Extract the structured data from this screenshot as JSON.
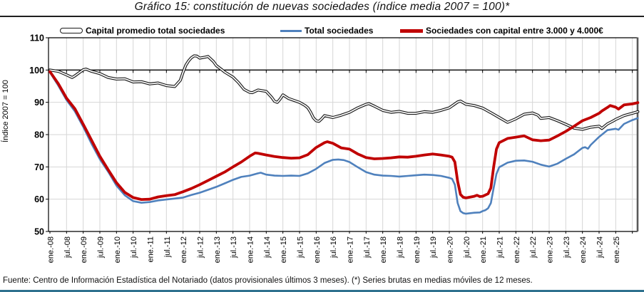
{
  "page": {
    "footer": "Fuente: Centro de Información Estadística del Notariado (datos provisionales últimos 3 meses). (*) Series brutas en medias móviles de 12 meses.",
    "bottom_rule_color": "#2E718E"
  },
  "chart_data": {
    "type": "line",
    "title": "Gráfico 15: constitución de nuevas sociedades (índice media 2007 = 100)*",
    "ylabel": "Índice 2007 = 100",
    "xlabel": "",
    "ylim": [
      50,
      110
    ],
    "y_ticks": [
      110,
      100,
      90,
      80,
      70,
      60,
      50
    ],
    "reference_line_at": 100,
    "grid": true,
    "legend_position": "top",
    "x_unit": "months since ene-08, 6-month ticks",
    "x_tick_labels": [
      "ene.-08",
      "jul.-08",
      "ene.-09",
      "jul.-09",
      "ene.-10",
      "jul.-10",
      "ene.-11",
      "jul.-11",
      "ene.-12",
      "jul.-12",
      "ene.-13",
      "jul.-13",
      "ene.-14",
      "jul.-14",
      "ene.-15",
      "jul.-15",
      "ene.-16",
      "jul.-16",
      "ene.-17",
      "jul.-17",
      "ene.-18",
      "jul.-18",
      "ene.-19",
      "jul.-19",
      "ene.-20",
      "jul.-20",
      "ene.-21",
      "jul.-21",
      "ene.-22",
      "jul.-22",
      "ene.-23",
      "jul.-23",
      "ene.-24",
      "jul.-24",
      "ene.-25"
    ],
    "gridline_color": "#D6D6D6",
    "series": [
      {
        "name": "Capital promedio total sociedades",
        "color": "#1A1A1A",
        "style": "double-line-white-core",
        "points": [
          [
            0,
            100
          ],
          [
            3,
            99.6
          ],
          [
            6,
            98.5
          ],
          [
            8,
            97.7
          ],
          [
            9,
            98.2
          ],
          [
            12,
            100.1
          ],
          [
            13,
            100.3
          ],
          [
            15,
            99.6
          ],
          [
            18,
            98.9
          ],
          [
            21,
            97.7
          ],
          [
            24,
            97.2
          ],
          [
            27,
            97.3
          ],
          [
            30,
            96.3
          ],
          [
            33,
            96.4
          ],
          [
            36,
            95.7
          ],
          [
            39,
            96.0
          ],
          [
            42,
            95.2
          ],
          [
            45,
            94.9
          ],
          [
            47,
            96.8
          ],
          [
            48,
            99.3
          ],
          [
            49,
            101.5
          ],
          [
            50,
            102.8
          ],
          [
            51,
            103.8
          ],
          [
            52,
            104.4
          ],
          [
            53,
            104.3
          ],
          [
            54,
            103.7
          ],
          [
            56,
            104.0
          ],
          [
            57,
            104.2
          ],
          [
            59,
            102.6
          ],
          [
            60,
            101.4
          ],
          [
            62,
            100.1
          ],
          [
            63,
            99.4
          ],
          [
            66,
            97.8
          ],
          [
            68,
            96.1
          ],
          [
            70,
            94.0
          ],
          [
            72,
            93.1
          ],
          [
            73,
            93.0
          ],
          [
            75,
            93.8
          ],
          [
            78,
            93.4
          ],
          [
            80,
            91.5
          ],
          [
            81,
            90.3
          ],
          [
            82,
            90.0
          ],
          [
            83,
            91.0
          ],
          [
            84,
            92.3
          ],
          [
            86,
            91.2
          ],
          [
            87,
            90.9
          ],
          [
            90,
            90.0
          ],
          [
            92,
            89.0
          ],
          [
            93,
            88.3
          ],
          [
            94,
            86.9
          ],
          [
            95,
            85.2
          ],
          [
            96,
            84.3
          ],
          [
            97,
            84.1
          ],
          [
            98,
            84.9
          ],
          [
            99,
            85.9
          ],
          [
            102,
            85.3
          ],
          [
            105,
            86.0
          ],
          [
            108,
            86.9
          ],
          [
            111,
            88.3
          ],
          [
            114,
            89.4
          ],
          [
            115,
            89.6
          ],
          [
            117,
            88.8
          ],
          [
            120,
            87.5
          ],
          [
            123,
            86.9
          ],
          [
            126,
            87.2
          ],
          [
            129,
            86.6
          ],
          [
            132,
            86.6
          ],
          [
            135,
            87.1
          ],
          [
            138,
            86.9
          ],
          [
            141,
            87.5
          ],
          [
            144,
            88.3
          ],
          [
            147,
            90.1
          ],
          [
            148,
            90.4
          ],
          [
            150,
            89.4
          ],
          [
            153,
            89.0
          ],
          [
            156,
            88.2
          ],
          [
            159,
            86.8
          ],
          [
            162,
            85.3
          ],
          [
            165,
            83.8
          ],
          [
            168,
            84.9
          ],
          [
            171,
            86.3
          ],
          [
            174,
            86.7
          ],
          [
            176,
            86.0
          ],
          [
            177,
            85.0
          ],
          [
            180,
            85.3
          ],
          [
            183,
            84.3
          ],
          [
            186,
            83.2
          ],
          [
            189,
            82.0
          ],
          [
            192,
            81.6
          ],
          [
            195,
            82.3
          ],
          [
            198,
            82.6
          ],
          [
            199,
            81.9
          ],
          [
            201,
            83.3
          ],
          [
            203,
            84.2
          ],
          [
            204,
            84.7
          ],
          [
            207,
            85.9
          ],
          [
            210,
            86.6
          ],
          [
            212,
            87.1
          ]
        ]
      },
      {
        "name": "Total sociedades",
        "color": "#4F81BD",
        "style": "solid",
        "points": [
          [
            0,
            99.3
          ],
          [
            3,
            95.2
          ],
          [
            6,
            90.7
          ],
          [
            9,
            87.2
          ],
          [
            12,
            82.4
          ],
          [
            15,
            77.2
          ],
          [
            18,
            72.4
          ],
          [
            21,
            68.5
          ],
          [
            24,
            64.2
          ],
          [
            27,
            61.2
          ],
          [
            30,
            59.4
          ],
          [
            33,
            58.9
          ],
          [
            36,
            59.1
          ],
          [
            39,
            59.6
          ],
          [
            42,
            59.9
          ],
          [
            45,
            60.2
          ],
          [
            48,
            60.5
          ],
          [
            51,
            61.3
          ],
          [
            54,
            62.0
          ],
          [
            57,
            62.9
          ],
          [
            60,
            63.8
          ],
          [
            63,
            64.9
          ],
          [
            66,
            66.0
          ],
          [
            69,
            66.9
          ],
          [
            72,
            67.3
          ],
          [
            75,
            68.0
          ],
          [
            76,
            68.2
          ],
          [
            78,
            67.6
          ],
          [
            81,
            67.3
          ],
          [
            84,
            67.2
          ],
          [
            87,
            67.3
          ],
          [
            90,
            67.2
          ],
          [
            93,
            68.0
          ],
          [
            96,
            69.4
          ],
          [
            99,
            71.2
          ],
          [
            102,
            72.2
          ],
          [
            104,
            72.3
          ],
          [
            106,
            72.1
          ],
          [
            108,
            71.5
          ],
          [
            111,
            69.9
          ],
          [
            114,
            68.4
          ],
          [
            117,
            67.6
          ],
          [
            120,
            67.3
          ],
          [
            123,
            67.2
          ],
          [
            126,
            67.0
          ],
          [
            129,
            67.2
          ],
          [
            132,
            67.4
          ],
          [
            135,
            67.6
          ],
          [
            138,
            67.5
          ],
          [
            141,
            67.2
          ],
          [
            144,
            66.6
          ],
          [
            145,
            66.3
          ],
          [
            146,
            64.5
          ],
          [
            147,
            58.8
          ],
          [
            148,
            56.3
          ],
          [
            149,
            55.7
          ],
          [
            150,
            55.5
          ],
          [
            153,
            55.8
          ],
          [
            155,
            55.9
          ],
          [
            156,
            56.3
          ],
          [
            157,
            56.6
          ],
          [
            158,
            57.2
          ],
          [
            159,
            58.8
          ],
          [
            160,
            63.5
          ],
          [
            161,
            67.8
          ],
          [
            162,
            69.9
          ],
          [
            165,
            71.3
          ],
          [
            168,
            71.9
          ],
          [
            171,
            72.0
          ],
          [
            174,
            71.6
          ],
          [
            177,
            70.7
          ],
          [
            180,
            70.1
          ],
          [
            183,
            71.0
          ],
          [
            186,
            72.5
          ],
          [
            189,
            73.9
          ],
          [
            192,
            75.9
          ],
          [
            193,
            76.1
          ],
          [
            194,
            75.6
          ],
          [
            195,
            76.8
          ],
          [
            198,
            79.3
          ],
          [
            201,
            81.4
          ],
          [
            204,
            81.8
          ],
          [
            205,
            81.5
          ],
          [
            207,
            83.3
          ],
          [
            210,
            84.5
          ],
          [
            212,
            85.1
          ]
        ]
      },
      {
        "name": "Sociedades con capital entre 3.000 y 4.000€",
        "color": "#C00000",
        "style": "solid-thick",
        "points": [
          [
            0,
            99.5
          ],
          [
            3,
            95.8
          ],
          [
            6,
            91.3
          ],
          [
            9,
            88.0
          ],
          [
            12,
            83.2
          ],
          [
            15,
            78.3
          ],
          [
            18,
            73.3
          ],
          [
            21,
            69.1
          ],
          [
            24,
            65.1
          ],
          [
            27,
            62.1
          ],
          [
            30,
            60.5
          ],
          [
            33,
            59.9
          ],
          [
            36,
            60.0
          ],
          [
            39,
            60.7
          ],
          [
            42,
            61.1
          ],
          [
            45,
            61.4
          ],
          [
            48,
            62.3
          ],
          [
            51,
            63.3
          ],
          [
            54,
            64.5
          ],
          [
            57,
            65.8
          ],
          [
            60,
            67.1
          ],
          [
            63,
            68.4
          ],
          [
            66,
            70.0
          ],
          [
            69,
            71.5
          ],
          [
            72,
            73.3
          ],
          [
            74,
            74.3
          ],
          [
            75,
            74.2
          ],
          [
            78,
            73.7
          ],
          [
            81,
            73.2
          ],
          [
            84,
            72.9
          ],
          [
            87,
            72.7
          ],
          [
            90,
            72.8
          ],
          [
            93,
            73.8
          ],
          [
            96,
            76.0
          ],
          [
            99,
            77.5
          ],
          [
            100,
            77.8
          ],
          [
            102,
            77.3
          ],
          [
            105,
            75.9
          ],
          [
            108,
            75.5
          ],
          [
            111,
            74.0
          ],
          [
            114,
            72.9
          ],
          [
            117,
            72.5
          ],
          [
            120,
            72.6
          ],
          [
            123,
            72.8
          ],
          [
            126,
            73.1
          ],
          [
            129,
            73.0
          ],
          [
            132,
            73.3
          ],
          [
            135,
            73.7
          ],
          [
            138,
            74.0
          ],
          [
            141,
            73.7
          ],
          [
            144,
            73.3
          ],
          [
            145,
            73.0
          ],
          [
            146,
            71.5
          ],
          [
            147,
            65.5
          ],
          [
            148,
            61.5
          ],
          [
            149,
            60.6
          ],
          [
            150,
            60.4
          ],
          [
            153,
            60.9
          ],
          [
            154,
            61.2
          ],
          [
            155,
            60.8
          ],
          [
            156,
            60.9
          ],
          [
            157,
            61.3
          ],
          [
            158,
            61.7
          ],
          [
            159,
            63.5
          ],
          [
            160,
            70.0
          ],
          [
            161,
            75.5
          ],
          [
            162,
            77.5
          ],
          [
            165,
            78.8
          ],
          [
            168,
            79.2
          ],
          [
            171,
            79.6
          ],
          [
            174,
            78.4
          ],
          [
            177,
            78.1
          ],
          [
            180,
            78.3
          ],
          [
            183,
            79.6
          ],
          [
            186,
            81.0
          ],
          [
            189,
            82.6
          ],
          [
            192,
            84.3
          ],
          [
            195,
            85.3
          ],
          [
            198,
            86.6
          ],
          [
            199,
            87.3
          ],
          [
            201,
            88.4
          ],
          [
            202,
            89.0
          ],
          [
            204,
            88.5
          ],
          [
            205,
            87.9
          ],
          [
            207,
            89.2
          ],
          [
            210,
            89.5
          ],
          [
            212,
            89.9
          ]
        ]
      }
    ]
  }
}
